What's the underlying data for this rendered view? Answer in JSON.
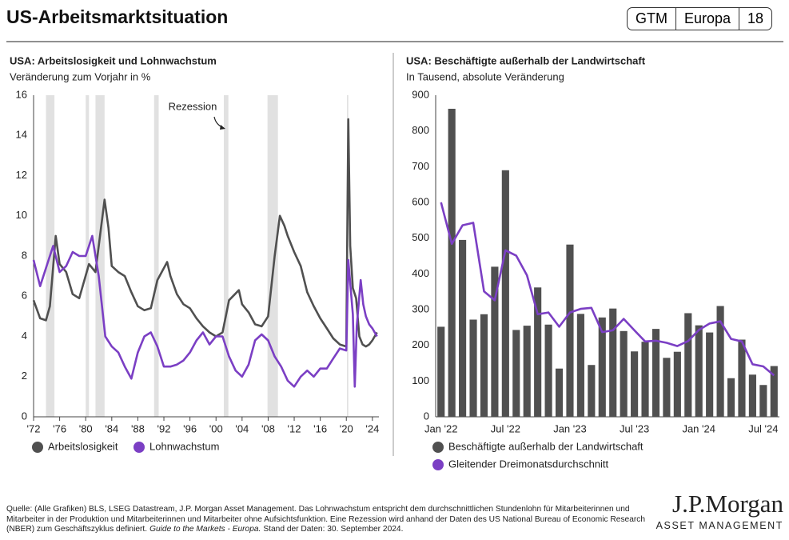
{
  "header": {
    "title": "US-Arbeitsmarktsituation",
    "badges": [
      "GTM",
      "Europa",
      "18"
    ]
  },
  "chart_data": [
    {
      "type": "line",
      "title": "USA: Arbeitslosigkeit und Lohnwachstum",
      "subtitle": "Veränderung zum Vorjahr in %",
      "annotation": "Rezession",
      "xlim": [
        1972,
        2025
      ],
      "ylim": [
        0,
        16
      ],
      "yticks": [
        0,
        2,
        4,
        6,
        8,
        10,
        12,
        14,
        16
      ],
      "grid": false,
      "xticks": [
        {
          "value": 1972,
          "label": "'72"
        },
        {
          "value": 1976,
          "label": "'76"
        },
        {
          "value": 1980,
          "label": "'80"
        },
        {
          "value": 1984,
          "label": "'84"
        },
        {
          "value": 1988,
          "label": "'88"
        },
        {
          "value": 1992,
          "label": "'92"
        },
        {
          "value": 1996,
          "label": "'96"
        },
        {
          "value": 2000,
          "label": "'00"
        },
        {
          "value": 2004,
          "label": "'04"
        },
        {
          "value": 2008,
          "label": "'08"
        },
        {
          "value": 2012,
          "label": "'12"
        },
        {
          "value": 2016,
          "label": "'16"
        },
        {
          "value": 2020,
          "label": "'20"
        },
        {
          "value": 2024,
          "label": "'24"
        }
      ],
      "recessions": [
        [
          1973.9,
          1975.2
        ],
        [
          1980.0,
          1980.5
        ],
        [
          1981.5,
          1982.9
        ],
        [
          1990.5,
          1991.2
        ],
        [
          2001.2,
          2001.9
        ],
        [
          2007.9,
          2009.5
        ],
        [
          2020.1,
          2020.3
        ]
      ],
      "series": [
        {
          "name": "Arbeitslosigkeit",
          "color": "#505050",
          "x": [
            1972,
            1973,
            1973.9,
            1974.5,
            1975.4,
            1976,
            1977,
            1978,
            1979,
            1980.5,
            1981,
            1981.5,
            1982.9,
            1983.5,
            1984,
            1985,
            1986,
            1987,
            1988,
            1989,
            1990,
            1991,
            1992.5,
            1993,
            1994,
            1995,
            1996,
            1997,
            1998,
            1999,
            2000,
            2001,
            2002,
            2003.5,
            2004,
            2005,
            2006,
            2007,
            2008,
            2009,
            2009.8,
            2010.5,
            2011,
            2012,
            2013,
            2014,
            2015,
            2016,
            2017,
            2018,
            2019,
            2020.0,
            2020.3,
            2020.6,
            2021,
            2021.5,
            2022,
            2022.5,
            2023,
            2023.5,
            2024,
            2024.7
          ],
          "values": [
            5.8,
            4.9,
            4.8,
            5.5,
            9.0,
            7.6,
            7.2,
            6.1,
            5.9,
            7.6,
            7.4,
            7.2,
            10.8,
            9.4,
            7.5,
            7.2,
            7.0,
            6.2,
            5.5,
            5.3,
            5.4,
            6.8,
            7.7,
            7.0,
            6.1,
            5.6,
            5.4,
            4.9,
            4.5,
            4.2,
            4.0,
            4.2,
            5.8,
            6.3,
            5.6,
            5.2,
            4.6,
            4.5,
            5.0,
            8.0,
            10.0,
            9.5,
            9.0,
            8.2,
            7.5,
            6.2,
            5.5,
            4.9,
            4.4,
            3.9,
            3.6,
            3.5,
            14.8,
            8.5,
            6.4,
            5.9,
            4.0,
            3.6,
            3.5,
            3.6,
            3.8,
            4.2
          ]
        },
        {
          "name": "Lohnwachstum",
          "color": "#7b3fc4",
          "x": [
            1972,
            1973,
            1974,
            1975,
            1976,
            1977,
            1978,
            1979,
            1980,
            1981,
            1982,
            1983,
            1984,
            1985,
            1986,
            1987,
            1988,
            1989,
            1990,
            1991,
            1992,
            1993,
            1994,
            1995,
            1996,
            1997,
            1998,
            1999,
            2000,
            2001,
            2002,
            2003,
            2004,
            2005,
            2006,
            2007,
            2008,
            2009,
            2010,
            2011,
            2012,
            2013,
            2014,
            2015,
            2016,
            2017,
            2018,
            2019,
            2020.0,
            2020.3,
            2021.0,
            2021.3,
            2021.6,
            2022.2,
            2022.6,
            2023,
            2023.5,
            2024,
            2024.7
          ],
          "values": [
            7.8,
            6.5,
            7.5,
            8.5,
            7.2,
            7.5,
            8.2,
            8.0,
            8.0,
            9.0,
            7.0,
            4.0,
            3.5,
            3.2,
            2.5,
            1.9,
            3.2,
            4.0,
            4.2,
            3.5,
            2.5,
            2.5,
            2.6,
            2.8,
            3.2,
            3.8,
            4.2,
            3.6,
            4.0,
            4.0,
            3.0,
            2.3,
            2.0,
            2.6,
            3.8,
            4.1,
            3.8,
            3.0,
            2.5,
            1.8,
            1.5,
            2.0,
            2.3,
            2.0,
            2.4,
            2.4,
            2.9,
            3.4,
            3.3,
            7.8,
            5.1,
            1.5,
            4.5,
            6.8,
            5.6,
            5.0,
            4.6,
            4.4,
            4.0
          ]
        }
      ]
    },
    {
      "type": "bar",
      "title": "USA: Beschäftigte außerhalb der Landwirtschaft",
      "subtitle": "In Tausend, absolute Veränderung",
      "ylim": [
        0,
        900
      ],
      "yticks": [
        0,
        100,
        200,
        300,
        400,
        500,
        600,
        700,
        800,
        900
      ],
      "grid": false,
      "categories": [
        "Jan '22",
        null,
        null,
        null,
        null,
        null,
        "Jul '22",
        null,
        null,
        null,
        null,
        null,
        "Jan '23",
        null,
        null,
        null,
        null,
        null,
        "Jul '23",
        null,
        null,
        null,
        null,
        null,
        "Jan '24",
        null,
        null,
        null,
        null,
        null,
        "Jul '24",
        null
      ],
      "series": [
        {
          "name": "Beschäftigte außerhalb der Landwirtschaft",
          "type": "bar",
          "color": "#505050",
          "values": [
            252,
            862,
            495,
            272,
            287,
            420,
            690,
            243,
            255,
            362,
            258,
            135,
            482,
            288,
            145,
            278,
            303,
            240,
            183,
            210,
            246,
            165,
            182,
            290,
            256,
            236,
            310,
            108,
            216,
            118,
            89,
            142
          ]
        },
        {
          "name": "Gleitender Dreimonatsdurchschnitt",
          "type": "line",
          "color": "#7b3fc4",
          "values": [
            600,
            484,
            536,
            543,
            351,
            326,
            466,
            451,
            396,
            287,
            292,
            252,
            292,
            302,
            305,
            237,
            242,
            274,
            242,
            211,
            213,
            207,
            198,
            212,
            243,
            261,
            267,
            218,
            211,
            147,
            141,
            116
          ]
        }
      ]
    }
  ],
  "footer": {
    "source": "Quelle: (Alle Grafiken) BLS, LSEG Datastream, J.P. Morgan Asset Management. Das Lohnwachstum entspricht dem durchschnittlichen Stundenlohn für Mitarbeiterinnen und Mitarbeiter in der Produktion und Mitarbeiterinnen und Mitarbeiter ohne Aufsichtsfunktion. Eine Rezession wird anhand der Daten des US National Bureau of Economic Research (NBER) zum Geschäftszyklus definiert.",
    "italic": "Guide to the Markets - Europa.",
    "date": "Stand der Daten: 30. September 2024."
  },
  "logo": {
    "name": "J.P.Morgan",
    "subtitle": "ASSET MANAGEMENT"
  }
}
